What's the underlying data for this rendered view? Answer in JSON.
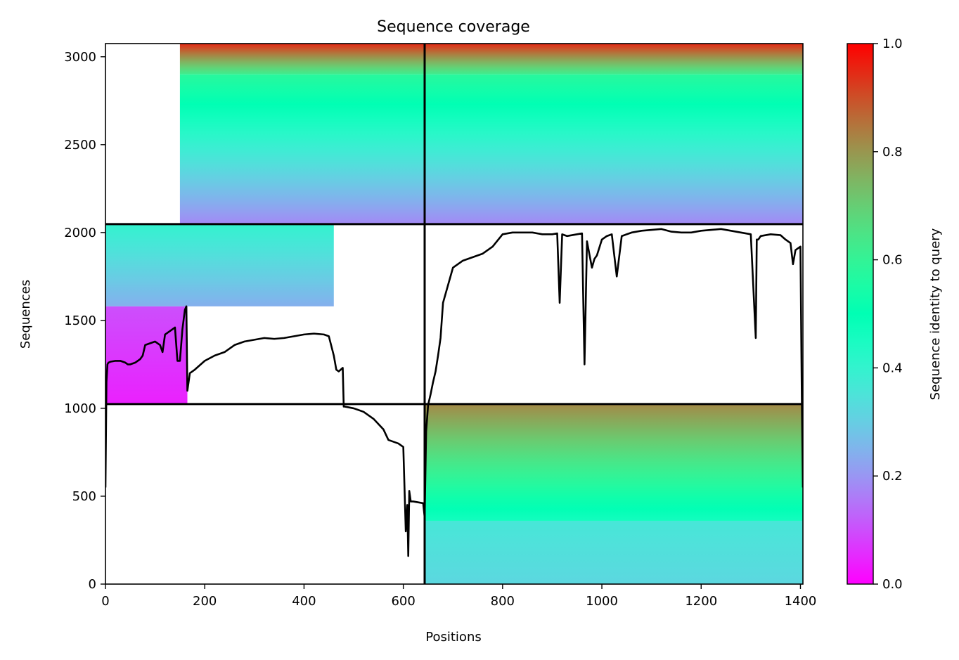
{
  "chart_data": {
    "type": "heatmap",
    "title": "Sequence coverage",
    "xlabel": "Positions",
    "ylabel": "Sequences",
    "colorbar_label": "Sequence identity to query",
    "xlim": [
      0,
      1405
    ],
    "ylim": [
      0,
      3075
    ],
    "xticks": [
      0,
      200,
      400,
      600,
      800,
      1000,
      1200,
      1400
    ],
    "yticks": [
      0,
      500,
      1000,
      1500,
      2000,
      2500,
      3000
    ],
    "colorbar_ticks": [
      0.0,
      0.2,
      0.4,
      0.6,
      0.8,
      1.0
    ],
    "colorbar_tick_labels": [
      "0.0",
      "0.2",
      "0.4",
      "0.6",
      "0.8",
      "1.0"
    ],
    "colormap": "rainbow",
    "grid": false,
    "chain_boundaries": {
      "positions": [
        643
      ],
      "sequences": [
        1024,
        2048
      ]
    },
    "coverage_blocks": [
      {
        "x": [
          0,
          165
        ],
        "y": [
          1024,
          1580
        ],
        "identity_bottom": 0.04,
        "identity_top": 0.1
      },
      {
        "x": [
          0,
          460
        ],
        "y": [
          1580,
          2048
        ],
        "identity_bottom": 0.24,
        "identity_top": 0.4
      },
      {
        "x": [
          150,
          643
        ],
        "y": [
          2048,
          2900
        ],
        "identity_bottom": 0.18,
        "identity_top": 0.58
      },
      {
        "x": [
          150,
          643
        ],
        "y": [
          2900,
          3075
        ],
        "identity_bottom": 0.62,
        "identity_top": 0.95
      },
      {
        "x": [
          643,
          1405
        ],
        "y": [
          2048,
          2900
        ],
        "identity_bottom": 0.18,
        "identity_top": 0.58
      },
      {
        "x": [
          643,
          1405
        ],
        "y": [
          2900,
          3075
        ],
        "identity_bottom": 0.62,
        "identity_top": 0.95
      },
      {
        "x": [
          643,
          1405
        ],
        "y": [
          0,
          360
        ],
        "identity_bottom": 0.32,
        "identity_top": 0.36
      },
      {
        "x": [
          643,
          1405
        ],
        "y": [
          360,
          1024
        ],
        "identity_bottom": 0.46,
        "identity_top": 0.82
      }
    ],
    "coverage_line": {
      "x": [
        0,
        2,
        4,
        6,
        10,
        20,
        30,
        40,
        45,
        50,
        60,
        70,
        75,
        80,
        90,
        100,
        110,
        115,
        120,
        130,
        135,
        140,
        145,
        150,
        155,
        160,
        163,
        165,
        170,
        180,
        200,
        220,
        240,
        260,
        280,
        300,
        320,
        340,
        360,
        380,
        400,
        420,
        440,
        450,
        460,
        465,
        470,
        478,
        480,
        482,
        500,
        520,
        540,
        560,
        570,
        590,
        600,
        605,
        608,
        610,
        612,
        615,
        620,
        640,
        643,
        646,
        650,
        655,
        660,
        665,
        670,
        675,
        680,
        700,
        720,
        740,
        760,
        780,
        800,
        820,
        840,
        860,
        880,
        900,
        910,
        915,
        920,
        930,
        940,
        950,
        960,
        965,
        970,
        980,
        985,
        990,
        1000,
        1010,
        1020,
        1030,
        1040,
        1060,
        1080,
        1100,
        1120,
        1140,
        1160,
        1180,
        1200,
        1220,
        1240,
        1260,
        1280,
        1300,
        1310,
        1312,
        1315,
        1320,
        1340,
        1360,
        1370,
        1380,
        1385,
        1390,
        1400,
        1403,
        1405
      ],
      "y": [
        550,
        1150,
        1250,
        1260,
        1265,
        1270,
        1270,
        1260,
        1250,
        1250,
        1260,
        1280,
        1300,
        1360,
        1370,
        1380,
        1360,
        1320,
        1420,
        1440,
        1450,
        1460,
        1270,
        1270,
        1450,
        1560,
        1580,
        1100,
        1200,
        1220,
        1270,
        1300,
        1320,
        1360,
        1380,
        1390,
        1400,
        1395,
        1400,
        1410,
        1420,
        1425,
        1420,
        1410,
        1300,
        1220,
        1210,
        1230,
        1010,
        1010,
        1000,
        980,
        940,
        880,
        820,
        800,
        780,
        300,
        450,
        160,
        530,
        470,
        470,
        460,
        380,
        870,
        1020,
        1080,
        1150,
        1210,
        1300,
        1400,
        1600,
        1800,
        1840,
        1860,
        1880,
        1920,
        1990,
        2000,
        2000,
        2000,
        1990,
        1990,
        1995,
        1600,
        1990,
        1980,
        1985,
        1990,
        1995,
        1250,
        1950,
        1800,
        1850,
        1870,
        1960,
        1980,
        1990,
        1750,
        1980,
        2000,
        2010,
        2015,
        2020,
        2005,
        2000,
        2000,
        2010,
        2015,
        2020,
        2010,
        2000,
        1990,
        1400,
        1960,
        1960,
        1980,
        1990,
        1985,
        1960,
        1940,
        1820,
        1900,
        1920,
        1000,
        550
      ]
    }
  }
}
